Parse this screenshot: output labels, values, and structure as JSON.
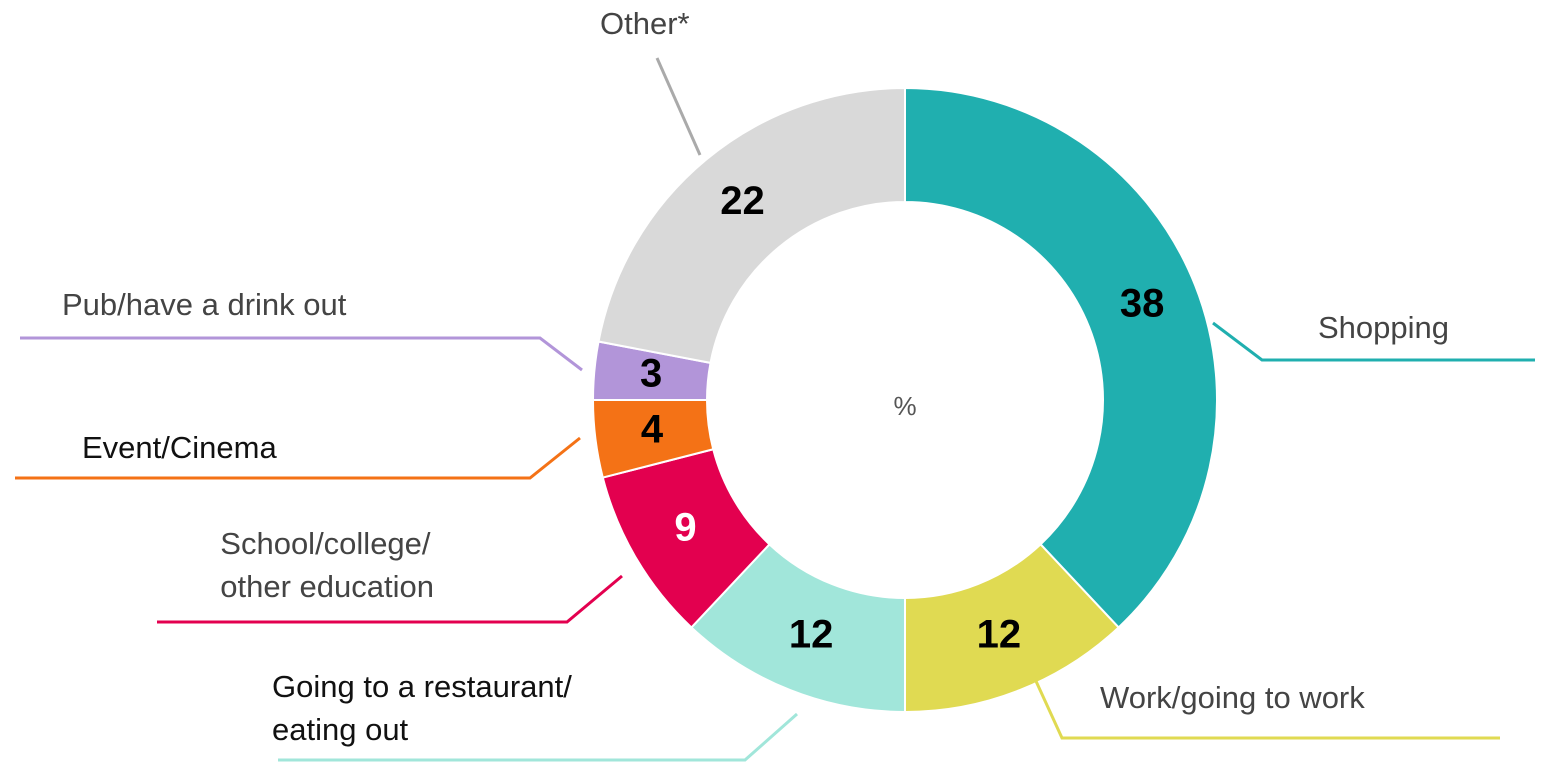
{
  "chart_data": {
    "type": "donut",
    "center_label": "%",
    "categories": [
      "Shopping",
      "Work/going to work",
      "Going to a restaurant/\neating out",
      "School/college/\nother education",
      "Event/Cinema",
      "Pub/have a drink out",
      "Other*"
    ],
    "values": [
      38,
      12,
      12,
      9,
      4,
      3,
      22
    ],
    "colors": [
      "#20afaf",
      "#e0da52",
      "#a1e6da",
      "#e3004f",
      "#f47216",
      "#b295d9",
      "#d9d9d9"
    ]
  }
}
